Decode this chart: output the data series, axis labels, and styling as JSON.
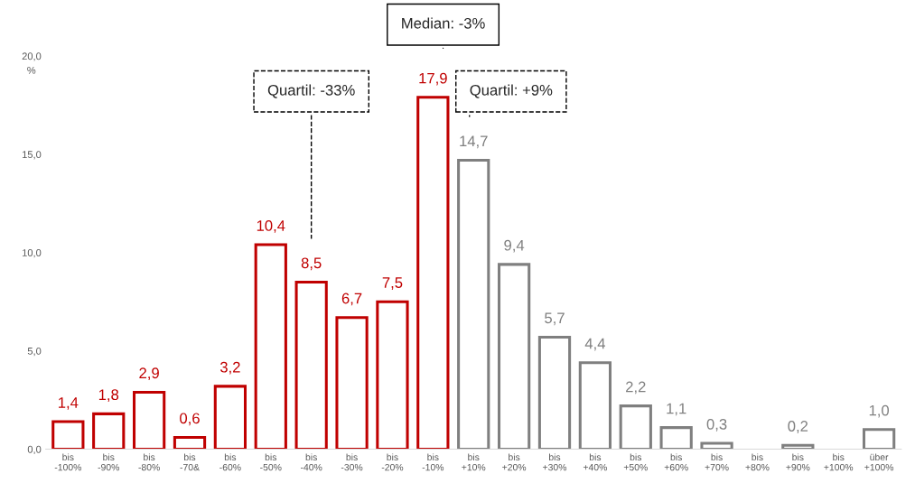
{
  "chart_data": {
    "type": "bar",
    "ylabel": "%",
    "categories": [
      "bis\n-100%",
      "bis\n-90%",
      "bis\n-80%",
      "bis\n-70&",
      "bis\n-60%",
      "bis\n-50%",
      "bis\n-40%",
      "bis\n-30%",
      "bis\n-20%",
      "bis\n-10%",
      "bis\n+10%",
      "bis\n+20%",
      "bis\n+30%",
      "bis\n+40%",
      "bis\n+50%",
      "bis\n+60%",
      "bis\n+70%",
      "bis\n+80%",
      "bis\n+90%",
      "bis\n+100%",
      "über\n+100%"
    ],
    "values": [
      1.4,
      1.8,
      2.9,
      0.6,
      3.2,
      10.4,
      8.5,
      6.7,
      7.5,
      17.9,
      14.7,
      9.4,
      5.7,
      4.4,
      2.2,
      1.1,
      0.3,
      null,
      0.2,
      null,
      1.0
    ],
    "colors": [
      "#c00000",
      "#c00000",
      "#c00000",
      "#c00000",
      "#c00000",
      "#c00000",
      "#c00000",
      "#c00000",
      "#c00000",
      "#c00000",
      "#7f7f7f",
      "#7f7f7f",
      "#7f7f7f",
      "#7f7f7f",
      "#7f7f7f",
      "#7f7f7f",
      "#7f7f7f",
      "#7f7f7f",
      "#7f7f7f",
      "#7f7f7f",
      "#7f7f7f"
    ],
    "value_labels": [
      "1,4",
      "1,8",
      "2,9",
      "0,6",
      "3,2",
      "10,4",
      "8,5",
      "6,7",
      "7,5",
      "17,9",
      "14,7",
      "9,4",
      "5,7",
      "4,4",
      "2,2",
      "1,1",
      "0,3",
      null,
      "0,2",
      null,
      "1,0"
    ],
    "ylim": [
      0,
      20
    ],
    "yticks": [
      {
        "value": 0,
        "label": "0,0"
      },
      {
        "value": 5,
        "label": "5,0"
      },
      {
        "value": 10,
        "label": "10,0"
      },
      {
        "value": 15,
        "label": "15,0"
      },
      {
        "value": 20,
        "label": "20,0"
      }
    ],
    "grid": false,
    "legend": false,
    "annotations": [
      "Median: -3%",
      "Quartil: -33%",
      "Quartil: +9%"
    ]
  }
}
